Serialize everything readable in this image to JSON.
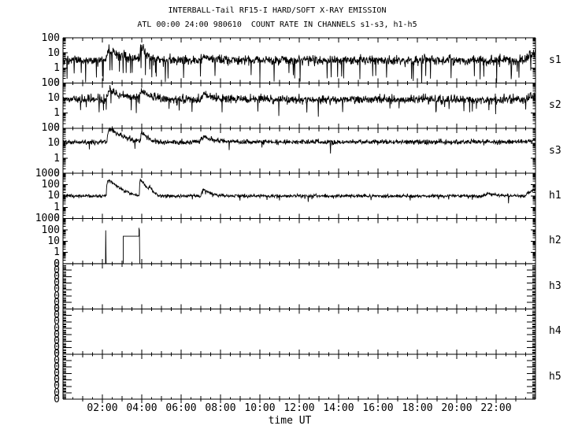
{
  "chart_data": {
    "type": "line",
    "title": "INTERBALL-Tail RF15-I HARD/SOFT X-RAY EMISSION",
    "subtitle": "ATL 00:00 24:00 980610  COUNT RATE IN CHANNELS s1-s3, h1-h5",
    "xlabel": "time UT",
    "x_range_hours": [
      0,
      24
    ],
    "x_minor_step_hours": 0.5,
    "x_major_ticks": [
      {
        "hour": 2,
        "label": "02:00"
      },
      {
        "hour": 4,
        "label": "04:00"
      },
      {
        "hour": 6,
        "label": "06:00"
      },
      {
        "hour": 8,
        "label": "08:00"
      },
      {
        "hour": 10,
        "label": "10:00"
      },
      {
        "hour": 12,
        "label": "12:00"
      },
      {
        "hour": 14,
        "label": "14:00"
      },
      {
        "hour": 16,
        "label": "16:00"
      },
      {
        "hour": 18,
        "label": "18:00"
      },
      {
        "hour": 20,
        "label": "20:00"
      },
      {
        "hour": 22,
        "label": "22:00"
      }
    ],
    "axis_color": "#000000",
    "series_color": "#000000",
    "panels": [
      {
        "label": "s1",
        "scale": "log",
        "top_value": 100,
        "decades": 3,
        "ytick_labels": [
          "100",
          "10",
          "1",
          "0"
        ],
        "series": {
          "kind": "noisy",
          "baseline": 3.2,
          "noise_dex": 0.16,
          "dropout_prob": 0.05,
          "dropout_depth": 0.08,
          "events": [
            {
              "t": 2.35,
              "factor": 4.5,
              "rise": 0.15,
              "decay": 0.5
            },
            {
              "t": 3.97,
              "factor": 6.0,
              "rise": 0.08,
              "decay": 0.2
            },
            {
              "t": 7.15,
              "factor": 1.7,
              "rise": 0.2,
              "decay": 0.4
            },
            {
              "t": 24.0,
              "factor": 3.0,
              "rise": 0.6,
              "decay": 1.0
            }
          ]
        }
      },
      {
        "label": "s2",
        "scale": "log",
        "top_value": 100,
        "decades": 3,
        "ytick_labels": [
          "100",
          "10",
          "1",
          "0"
        ],
        "series": {
          "kind": "noisy",
          "baseline": 8.0,
          "noise_dex": 0.14,
          "dropout_prob": 0.02,
          "dropout_depth": 0.18,
          "events": [
            {
              "t": 2.35,
              "factor": 4.0,
              "rise": 0.15,
              "decay": 0.6
            },
            {
              "t": 3.97,
              "factor": 3.5,
              "rise": 0.08,
              "decay": 0.3
            },
            {
              "t": 7.15,
              "factor": 2.2,
              "rise": 0.2,
              "decay": 0.5
            },
            {
              "t": 24.0,
              "factor": 2.0,
              "rise": 0.6,
              "decay": 1.0
            }
          ]
        }
      },
      {
        "label": "s3",
        "scale": "log",
        "top_value": 100,
        "decades": 3,
        "ytick_labels": [
          "100",
          "10",
          "1",
          "0"
        ],
        "series": {
          "kind": "noisy",
          "baseline": 12.0,
          "noise_dex": 0.08,
          "dropout_prob": 0.006,
          "dropout_depth": 0.3,
          "events": [
            {
              "t": 2.35,
              "factor": 7.5,
              "rise": 0.12,
              "decay": 0.45
            },
            {
              "t": 4.0,
              "factor": 4.5,
              "rise": 0.06,
              "decay": 0.2
            },
            {
              "t": 7.15,
              "factor": 2.3,
              "rise": 0.2,
              "decay": 0.45
            },
            {
              "t": 24.0,
              "factor": 1.5,
              "rise": 0.6,
              "decay": 1.0
            }
          ]
        }
      },
      {
        "label": "h1",
        "scale": "log",
        "top_value": 1000,
        "decades": 4,
        "ytick_labels": [
          "1000",
          "100",
          "10",
          "1",
          "0"
        ],
        "series": {
          "kind": "noisy",
          "baseline": 10.0,
          "noise_dex": 0.07,
          "dropout_prob": 0.01,
          "dropout_depth": 0.5,
          "events": [
            {
              "t": 2.3,
              "factor": 30.0,
              "rise": 0.1,
              "decay": 0.3
            },
            {
              "t": 3.93,
              "factor": 28.0,
              "rise": 0.05,
              "decay": 0.18
            },
            {
              "t": 4.4,
              "factor": 3.0,
              "rise": 0.05,
              "decay": 0.1
            },
            {
              "t": 7.1,
              "factor": 4.0,
              "rise": 0.1,
              "decay": 0.3
            },
            {
              "t": 21.6,
              "factor": 1.6,
              "rise": 0.3,
              "decay": 0.5
            },
            {
              "t": 24.0,
              "factor": 3.5,
              "rise": 0.55,
              "decay": 1.0
            }
          ]
        }
      },
      {
        "label": "h2",
        "scale": "log",
        "top_value": 1000,
        "decades": 4,
        "ytick_labels": [
          "1000",
          "100",
          "10",
          "1",
          "0"
        ],
        "series": {
          "kind": "segments",
          "points": [
            [
              0,
              0.102
            ],
            [
              2.16,
              0.102
            ],
            [
              2.17,
              90
            ],
            [
              2.19,
              0.102
            ],
            [
              3.06,
              0.102
            ],
            [
              3.06,
              27
            ],
            [
              3.86,
              27
            ],
            [
              3.86,
              150
            ],
            [
              3.87,
              45
            ],
            [
              3.88,
              110
            ],
            [
              3.9,
              0.102
            ],
            [
              24,
              0.102
            ]
          ]
        }
      },
      {
        "label": "h3",
        "scale": "log",
        "decades": 7,
        "ytick_labels": [
          "0",
          "0",
          "0",
          "0",
          "0",
          "0",
          "0",
          "0"
        ],
        "series": {
          "kind": "none"
        }
      },
      {
        "label": "h4",
        "scale": "log",
        "decades": 7,
        "ytick_labels": [
          "0",
          "0",
          "0",
          "0",
          "0",
          "0",
          "0",
          "0"
        ],
        "series": {
          "kind": "none"
        }
      },
      {
        "label": "h5",
        "scale": "log",
        "decades": 7,
        "ytick_labels": [
          "0",
          "0",
          "0",
          "0",
          "0",
          "0",
          "0",
          "0"
        ],
        "series": {
          "kind": "none"
        }
      }
    ]
  }
}
